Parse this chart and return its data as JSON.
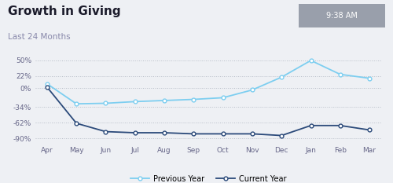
{
  "title": "Growth in Giving",
  "subtitle": "Last 24 Months",
  "timestamp": "9:38 AM",
  "x_labels": [
    "Apr",
    "May",
    "Jun",
    "Jul",
    "Aug",
    "Sep",
    "Oct",
    "Nov",
    "Dec",
    "Jan",
    "Feb",
    "Mar"
  ],
  "prev_year": [
    8,
    -28,
    -27,
    -24,
    -22,
    -20,
    -17,
    -3,
    20,
    50,
    25,
    18
  ],
  "curr_year": [
    2,
    -63,
    -78,
    -80,
    -80,
    -82,
    -82,
    -82,
    -85,
    -67,
    -67,
    -75
  ],
  "yticks": [
    -90,
    -62,
    -34,
    0,
    22,
    50
  ],
  "ylim": [
    -98,
    60
  ],
  "prev_color": "#7dcef0",
  "curr_color": "#2b4a7a",
  "bg_color": "#eef0f4",
  "plot_bg": "#eef0f4",
  "grid_color": "#b8bec8",
  "title_color": "#1a1a2a",
  "subtitle_color": "#8888aa",
  "tick_color": "#666688",
  "ts_bg": "#999fab",
  "ts_color": "#ffffff"
}
